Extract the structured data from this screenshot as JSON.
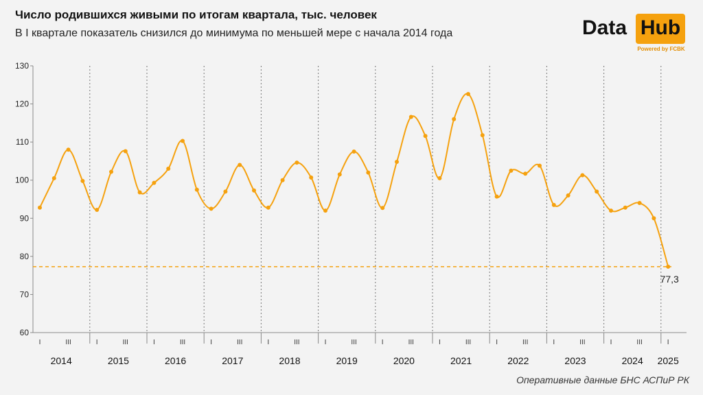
{
  "title": "Число родившихся живыми по итогам квартала, тыс. человек",
  "subtitle": "В I квартале показатель снизился до минимума по меньшей мере с начала 2014 года",
  "source": "Оперативные данные БНС АСПиР РК",
  "logo": {
    "word1": "Data",
    "word2": "Hub",
    "tagline": "Powered by FCBK"
  },
  "colors": {
    "line": "#f5a10e",
    "background": "#f3f3f3",
    "axis": "#888888",
    "separator": "#777777"
  },
  "chart_data": {
    "type": "line",
    "title": "Число родившихся живыми по итогам квартала, тыс. человек",
    "subtitle": "В I квартале показатель снизился до минимума по меньшей мере с начала 2014 года",
    "ylim": [
      60,
      130
    ],
    "yticks": [
      "60",
      "70",
      "80",
      "90",
      "100",
      "110",
      "120",
      "130"
    ],
    "years": [
      "2014",
      "2015",
      "2016",
      "2017",
      "2018",
      "2019",
      "2020",
      "2021",
      "2022",
      "2023",
      "2024",
      "2025"
    ],
    "quarter_tick_labels": [
      "I",
      "III"
    ],
    "values": [
      92.8,
      100.5,
      108,
      99.8,
      92.2,
      102.2,
      107.6,
      96.8,
      99.3,
      103,
      110.3,
      97.5,
      92.5,
      97,
      104,
      97.3,
      92.8,
      100,
      104.6,
      100.7,
      92,
      101.5,
      107.5,
      102,
      92.7,
      104.8,
      116.6,
      111.6,
      100.5,
      116,
      122.6,
      111.8,
      95.7,
      102.5,
      101.7,
      103.8,
      93.5,
      96,
      101.3,
      97,
      92,
      92.8,
      94,
      90,
      77.3
    ],
    "reference_line": {
      "value": 77.3,
      "style": "dashed"
    },
    "last_label": "77,3",
    "grid": false,
    "legend": "none"
  }
}
